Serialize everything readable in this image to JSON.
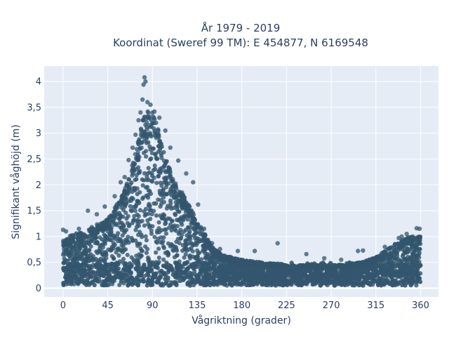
{
  "chart_data": {
    "type": "scatter",
    "title": [
      "År 1979 - 2019",
      "Koordinat (Sweref 99 TM): E 454877, N 6169548"
    ],
    "xlabel": "Vågriktning (grader)",
    "ylabel": "Signifikant våghöjd (m)",
    "xlim": [
      -19,
      378
    ],
    "ylim": [
      -0.17,
      4.3
    ],
    "x_ticks": [
      0,
      45,
      90,
      135,
      180,
      225,
      270,
      315,
      360
    ],
    "x_tick_labels": [
      "0",
      "45",
      "90",
      "135",
      "180",
      "225",
      "270",
      "315",
      "360"
    ],
    "y_ticks": [
      0,
      0.5,
      1,
      1.5,
      2,
      2.5,
      3,
      3.5,
      4
    ],
    "y_tick_labels": [
      "0",
      "0,5",
      "1",
      "1,5",
      "2",
      "2,5",
      "3",
      "3,5",
      "4"
    ],
    "grid": true,
    "marker_color": "#33566e",
    "plot_background": "#e5ecf6",
    "grid_color": "#ffffff",
    "envelope": {
      "description": "upper boundary of dense point cloud (direction, height)",
      "x": [
        0,
        10,
        20,
        30,
        45,
        55,
        65,
        75,
        80,
        85,
        90,
        95,
        100,
        105,
        110,
        120,
        130,
        135,
        140,
        150,
        160,
        180,
        200,
        225,
        240,
        270,
        300,
        315,
        330,
        340,
        350,
        360
      ],
      "y": [
        0.95,
        1.05,
        1.1,
        1.2,
        1.35,
        1.65,
        2.05,
        2.8,
        3.25,
        3.45,
        3.4,
        3.15,
        2.75,
        2.45,
        2.15,
        1.85,
        1.5,
        1.3,
        1.15,
        0.8,
        0.65,
        0.55,
        0.5,
        0.45,
        0.45,
        0.45,
        0.5,
        0.6,
        0.8,
        0.95,
        1.0,
        1.0
      ]
    },
    "outliers": [
      {
        "x": 0,
        "y": 1.13
      },
      {
        "x": 3,
        "y": 1.1
      },
      {
        "x": 16,
        "y": 1.15
      },
      {
        "x": 25,
        "y": 1.5
      },
      {
        "x": 34,
        "y": 1.43
      },
      {
        "x": 42,
        "y": 1.58
      },
      {
        "x": 52,
        "y": 1.78
      },
      {
        "x": 58,
        "y": 2.05
      },
      {
        "x": 62,
        "y": 2.15
      },
      {
        "x": 66,
        "y": 2.48
      },
      {
        "x": 70,
        "y": 2.72
      },
      {
        "x": 73,
        "y": 2.97
      },
      {
        "x": 76,
        "y": 3.25
      },
      {
        "x": 78,
        "y": 3.4
      },
      {
        "x": 80,
        "y": 3.65
      },
      {
        "x": 81,
        "y": 3.94
      },
      {
        "x": 82,
        "y": 4.08
      },
      {
        "x": 83,
        "y": 4.0
      },
      {
        "x": 85,
        "y": 3.6
      },
      {
        "x": 88,
        "y": 3.55
      },
      {
        "x": 92,
        "y": 3.42
      },
      {
        "x": 97,
        "y": 3.3
      },
      {
        "x": 103,
        "y": 3.05
      },
      {
        "x": 108,
        "y": 2.72
      },
      {
        "x": 116,
        "y": 2.47
      },
      {
        "x": 124,
        "y": 2.22
      },
      {
        "x": 131,
        "y": 2.05
      },
      {
        "x": 136,
        "y": 1.62
      },
      {
        "x": 142,
        "y": 1.15
      },
      {
        "x": 150,
        "y": 0.87
      },
      {
        "x": 158,
        "y": 0.76
      },
      {
        "x": 176,
        "y": 0.72
      },
      {
        "x": 193,
        "y": 0.72
      },
      {
        "x": 216,
        "y": 0.87
      },
      {
        "x": 245,
        "y": 0.66
      },
      {
        "x": 263,
        "y": 0.58
      },
      {
        "x": 280,
        "y": 0.55
      },
      {
        "x": 297,
        "y": 0.72
      },
      {
        "x": 302,
        "y": 0.73
      },
      {
        "x": 321,
        "y": 0.68
      },
      {
        "x": 324,
        "y": 0.8
      },
      {
        "x": 338,
        "y": 0.97
      },
      {
        "x": 341,
        "y": 1.0
      },
      {
        "x": 346,
        "y": 1.05
      },
      {
        "x": 356,
        "y": 1.16
      },
      {
        "x": 359,
        "y": 1.15
      }
    ]
  }
}
